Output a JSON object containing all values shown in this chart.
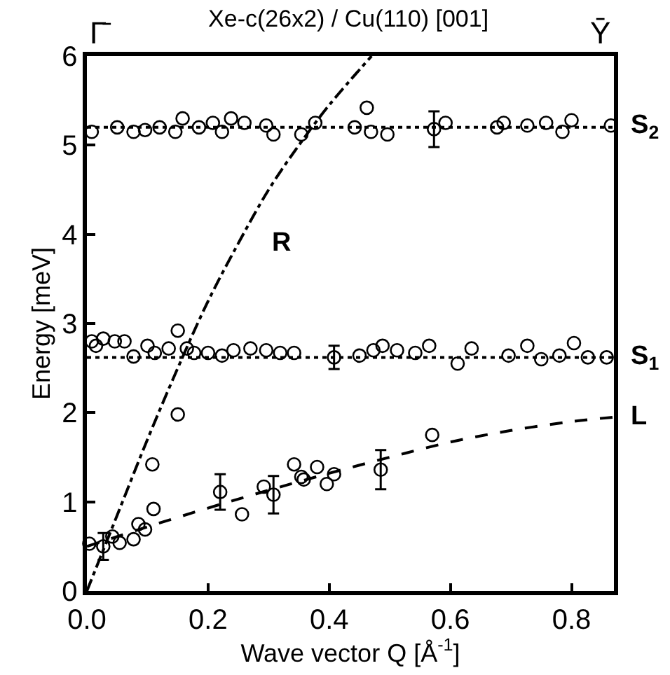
{
  "chart_data": {
    "type": "scatter",
    "title": "Xe-c(26x2) / Cu(110) [001]",
    "xlabel": "Wave vector Q [Å$^{-1}$]",
    "ylabel": "Energy [meV]",
    "xlim": [
      0,
      0.87
    ],
    "ylim": [
      0,
      6
    ],
    "xticks": [
      {
        "value": 0,
        "label": "0.0"
      },
      0.2,
      0.4,
      0.6,
      0.8
    ],
    "yticks": [
      0,
      1,
      2,
      3,
      4,
      5,
      6
    ],
    "series": [
      {
        "marker": "circle",
        "color": "#000000",
        "x": [
          0.008,
          0.05,
          0.077,
          0.096,
          0.12,
          0.146,
          0.158,
          0.185,
          0.208,
          0.223,
          0.238,
          0.26,
          0.296,
          0.308,
          0.354,
          0.377,
          0.442,
          0.462,
          0.469,
          0.496,
          0.573,
          0.592,
          0.677,
          0.688,
          0.727,
          0.758,
          0.785,
          0.8,
          0.865
        ],
        "values": [
          5.15,
          5.2,
          5.15,
          5.17,
          5.2,
          5.15,
          5.3,
          5.2,
          5.25,
          5.15,
          5.3,
          5.25,
          5.22,
          5.12,
          5.12,
          5.25,
          5.2,
          5.42,
          5.15,
          5.12,
          5.18,
          5.25,
          5.2,
          5.25,
          5.22,
          5.25,
          5.15,
          5.28,
          5.22
        ],
        "errors": [
          null,
          null,
          null,
          null,
          null,
          null,
          null,
          null,
          null,
          null,
          null,
          null,
          null,
          null,
          null,
          null,
          null,
          null,
          null,
          null,
          0.2,
          null,
          null,
          null,
          null,
          null,
          null,
          null,
          null
        ]
      },
      {
        "marker": "circle",
        "color": "#000000",
        "x": [
          0.008,
          0.015,
          0.027,
          0.046,
          0.062,
          0.077,
          0.1,
          0.112,
          0.135,
          0.15,
          0.165,
          0.177,
          0.2,
          0.223,
          0.242,
          0.27,
          0.296,
          0.319,
          0.342,
          0.408,
          0.45,
          0.473,
          0.488,
          0.512,
          0.542,
          0.565,
          0.612,
          0.635,
          0.696,
          0.727,
          0.75,
          0.78,
          0.804,
          0.827,
          0.858
        ],
        "values": [
          2.8,
          2.75,
          2.83,
          2.8,
          2.8,
          2.63,
          2.75,
          2.67,
          2.72,
          2.92,
          2.72,
          2.67,
          2.67,
          2.64,
          2.7,
          2.72,
          2.7,
          2.67,
          2.67,
          2.62,
          2.64,
          2.7,
          2.75,
          2.7,
          2.67,
          2.75,
          2.55,
          2.72,
          2.64,
          2.75,
          2.6,
          2.64,
          2.78,
          2.62,
          2.62
        ],
        "errors": [
          null,
          null,
          null,
          null,
          null,
          null,
          null,
          null,
          null,
          null,
          null,
          null,
          null,
          null,
          null,
          null,
          null,
          null,
          null,
          0.13,
          null,
          null,
          null,
          null,
          null,
          null,
          null,
          null,
          null,
          null,
          null,
          null,
          null,
          null,
          null
        ]
      },
      {
        "marker": "circle",
        "color": "#000000",
        "x": [
          0.004,
          0.027,
          0.042,
          0.054,
          0.077,
          0.085,
          0.096,
          0.108,
          0.11,
          0.15,
          0.22,
          0.256,
          0.292,
          0.308,
          0.342,
          0.354,
          0.358,
          0.38,
          0.396,
          0.408,
          0.485,
          0.57
        ],
        "values": [
          0.53,
          0.5,
          0.61,
          0.54,
          0.58,
          0.75,
          0.69,
          1.42,
          0.92,
          1.98,
          1.11,
          0.86,
          1.17,
          1.08,
          1.42,
          1.28,
          1.25,
          1.39,
          1.2,
          1.31,
          1.36,
          1.75
        ],
        "errors": [
          null,
          0.15,
          null,
          null,
          null,
          null,
          null,
          null,
          null,
          null,
          0.2,
          null,
          null,
          0.21,
          null,
          null,
          null,
          null,
          null,
          null,
          0.22,
          null
        ]
      },
      {
        "type": "line",
        "name": "S$_{2}$",
        "color": "#000000",
        "line_style": "dotted",
        "x": [
          0,
          0.87
        ],
        "values": [
          5.2,
          5.2
        ]
      },
      {
        "type": "line",
        "name": "S$_{1}$",
        "color": "#000000",
        "line_style": "dotted",
        "x": [
          0,
          0.87
        ],
        "values": [
          2.62,
          2.62
        ]
      },
      {
        "type": "line",
        "name": "L",
        "color": "#000000",
        "line_style": "dashed",
        "x": [
          0,
          0.1,
          0.2,
          0.3,
          0.4,
          0.5,
          0.6,
          0.7,
          0.8,
          0.87
        ],
        "values": [
          0.5,
          0.72,
          0.93,
          1.13,
          1.32,
          1.5,
          1.67,
          1.8,
          1.9,
          1.95
        ]
      },
      {
        "type": "line",
        "name": "R",
        "color": "#000000",
        "line_style": "dashdot",
        "x": [
          0,
          0.05,
          0.1,
          0.15,
          0.2,
          0.25,
          0.3,
          0.35,
          0.4,
          0.47
        ],
        "values": [
          0,
          0.85,
          1.7,
          2.5,
          3.25,
          3.9,
          4.5,
          5.0,
          5.45,
          6.0
        ]
      }
    ],
    "annotations": [
      "Γ̄",
      "Ȳ"
    ]
  }
}
